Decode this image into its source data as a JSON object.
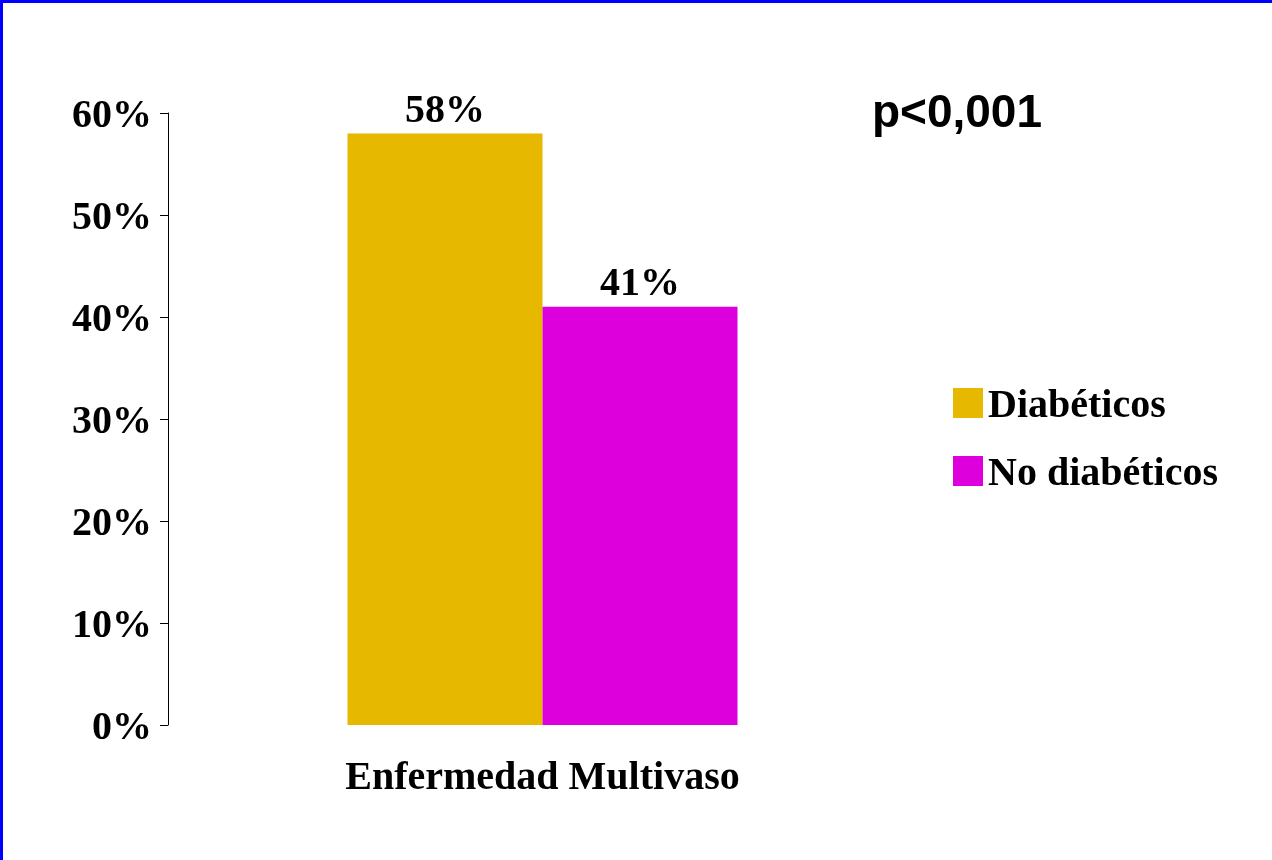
{
  "chart_data": {
    "type": "bar",
    "categories": [
      "Enfermedad Multivaso"
    ],
    "series": [
      {
        "name": "Diabéticos",
        "color": "#e6b800",
        "values": [
          58
        ],
        "value_labels": [
          "58%"
        ]
      },
      {
        "name": "No diabéticos",
        "color": "#dd00dd",
        "values": [
          41
        ],
        "value_labels": [
          "41%"
        ]
      }
    ],
    "ylim": [
      0,
      60
    ],
    "yticks": [
      {
        "value": 0,
        "label": "0%"
      },
      {
        "value": 10,
        "label": "10%"
      },
      {
        "value": 20,
        "label": "20%"
      },
      {
        "value": 30,
        "label": "30%"
      },
      {
        "value": 40,
        "label": "40%"
      },
      {
        "value": 50,
        "label": "50%"
      },
      {
        "value": 60,
        "label": "60%"
      }
    ],
    "annotations": [
      "p<0,001"
    ],
    "legend": "right",
    "grid": false
  }
}
